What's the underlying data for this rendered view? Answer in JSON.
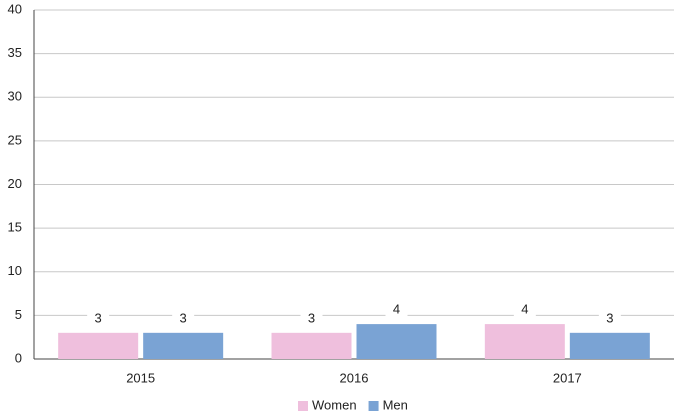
{
  "chart_data": {
    "type": "bar",
    "categories": [
      "2015",
      "2016",
      "2017"
    ],
    "series": [
      {
        "name": "Women",
        "color": "#efbfdd",
        "values": [
          3,
          3,
          4
        ]
      },
      {
        "name": "Men",
        "color": "#7aa3d4",
        "values": [
          3,
          4,
          3
        ]
      }
    ],
    "ylim": [
      0,
      40
    ],
    "yticks": [
      0,
      5,
      10,
      15,
      20,
      25,
      30,
      35,
      40
    ],
    "grid": true,
    "legend": "bottom"
  }
}
